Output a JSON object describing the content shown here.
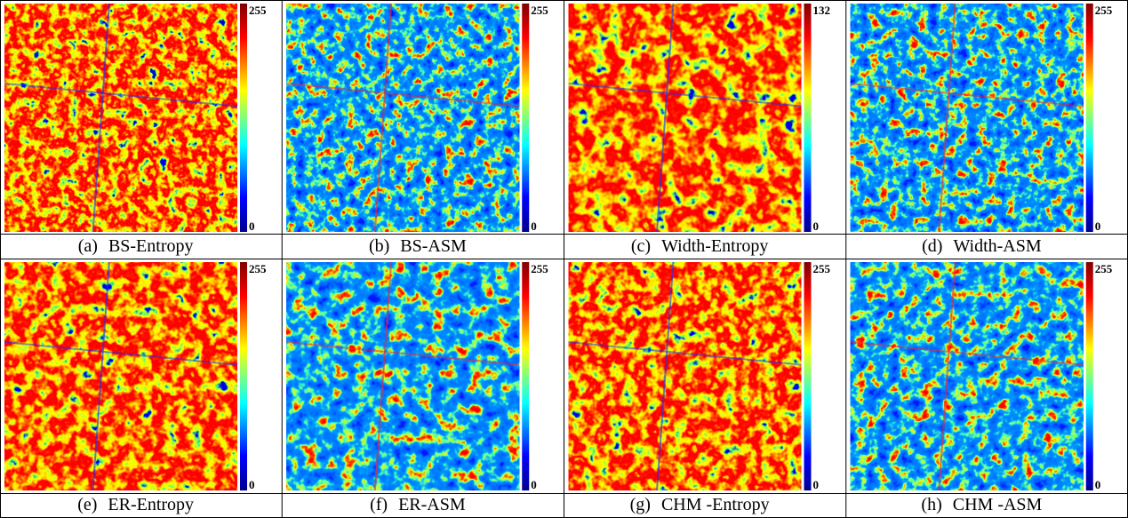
{
  "panels": [
    {
      "label": "(a)",
      "title": "BS-Entropy",
      "scale_max": "255",
      "scale_min": "0"
    },
    {
      "label": "(b)",
      "title": "BS-ASM",
      "scale_max": "255",
      "scale_min": "0"
    },
    {
      "label": "(c)",
      "title": "Width-Entropy",
      "scale_max": "132",
      "scale_min": "0"
    },
    {
      "label": "(d)",
      "title": "Width-ASM",
      "scale_max": "255",
      "scale_min": "0"
    },
    {
      "label": "(e)",
      "title": "ER-Entropy",
      "scale_max": "255",
      "scale_min": "0"
    },
    {
      "label": "(f)",
      "title": "ER-ASM",
      "scale_max": "255",
      "scale_min": "0"
    },
    {
      "label": "(g)",
      "title": "CHM -Entropy",
      "scale_max": "255",
      "scale_min": "0"
    },
    {
      "label": "(h)",
      "title": "CHM -ASM",
      "scale_max": "255",
      "scale_min": "0"
    }
  ]
}
